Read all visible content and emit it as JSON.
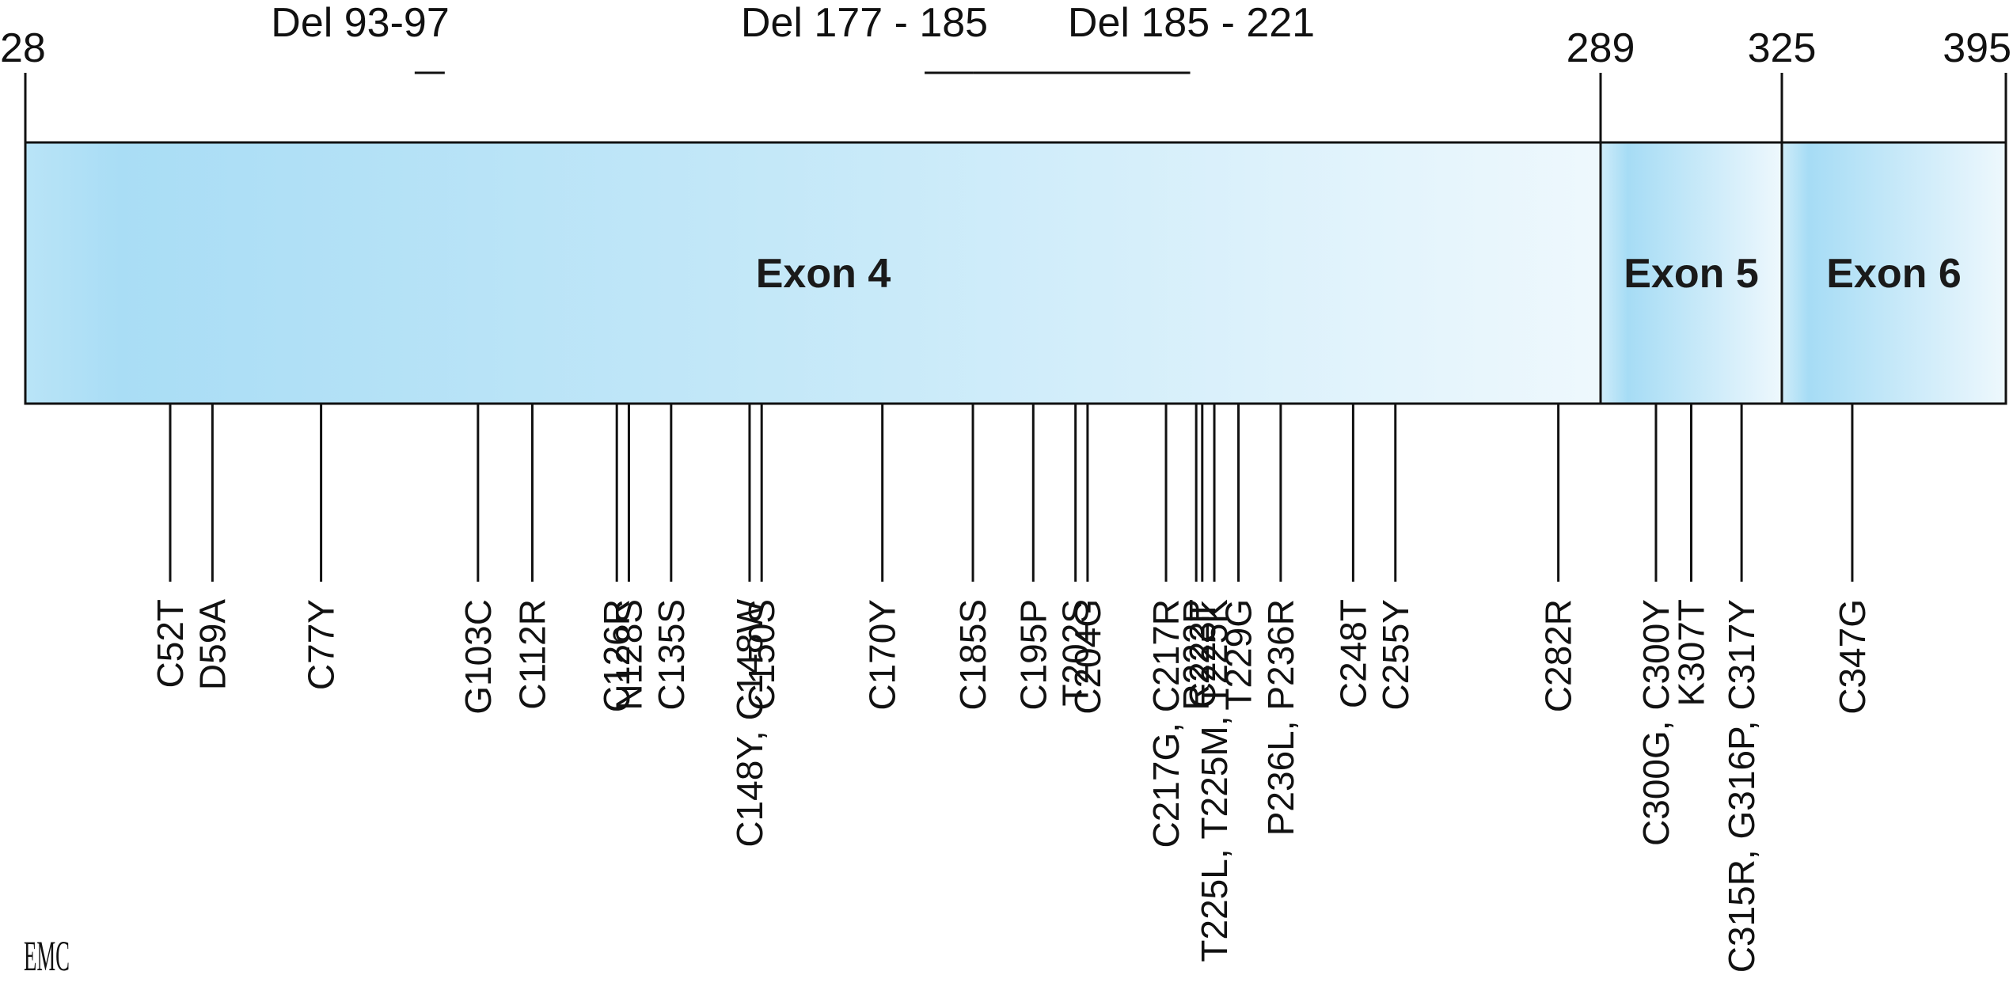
{
  "axis": {
    "start": 28,
    "end": 395,
    "boundary_labels": [
      "28",
      "289",
      "325",
      "395"
    ]
  },
  "exons": [
    {
      "id": "exon-4",
      "label": "Exon 4",
      "start": 28,
      "end": 289
    },
    {
      "id": "exon-5",
      "label": "Exon 5",
      "start": 289,
      "end": 325
    },
    {
      "id": "exon-6",
      "label": "Exon 6",
      "start": 325,
      "end": 395
    }
  ],
  "deletions": [
    {
      "label": "Del  93-97",
      "start": 93,
      "end": 97
    },
    {
      "label": "Del 177 - 185",
      "start": 177,
      "end": 185
    },
    {
      "label": "Del 185 - 221",
      "start": 185,
      "end": 221
    }
  ],
  "mutations": [
    {
      "pos": 52,
      "label": "C52T"
    },
    {
      "pos": 59,
      "label": "D59A"
    },
    {
      "pos": 77,
      "label": "C77Y"
    },
    {
      "pos": 103,
      "label": "G103C"
    },
    {
      "pos": 112,
      "label": "C112R"
    },
    {
      "pos": 126,
      "label": "C126R"
    },
    {
      "pos": 128,
      "label": "N128S"
    },
    {
      "pos": 135,
      "label": "C135S"
    },
    {
      "pos": 148,
      "label": "C148Y, C148W"
    },
    {
      "pos": 150,
      "label": "C150S"
    },
    {
      "pos": 170,
      "label": "C170Y"
    },
    {
      "pos": 185,
      "label": "C185S"
    },
    {
      "pos": 195,
      "label": "C195P"
    },
    {
      "pos": 202,
      "label": "T202S"
    },
    {
      "pos": 204,
      "label": "C204G"
    },
    {
      "pos": 217,
      "label": "C217G,  C217R"
    },
    {
      "pos": 222,
      "label": "R222P"
    },
    {
      "pos": 223,
      "label": "C223T"
    },
    {
      "pos": 225,
      "label": "T225L, T225M, T225K"
    },
    {
      "pos": 229,
      "label": "T229G"
    },
    {
      "pos": 236,
      "label": "P236L,  P236R"
    },
    {
      "pos": 248,
      "label": "C248T"
    },
    {
      "pos": 255,
      "label": "C255Y"
    },
    {
      "pos": 282,
      "label": "C282R"
    },
    {
      "pos": 300,
      "label": "C300G,  C300Y"
    },
    {
      "pos": 307,
      "label": "K307T"
    },
    {
      "pos": 317,
      "label": "C315R,  G316P, C317Y"
    },
    {
      "pos": 347,
      "label": "C347G"
    }
  ],
  "logo": "EMC",
  "colors": {
    "exon_fill_dark": "#a6dcf5",
    "exon_fill_light": "#eef8fd",
    "stroke": "#111111"
  }
}
